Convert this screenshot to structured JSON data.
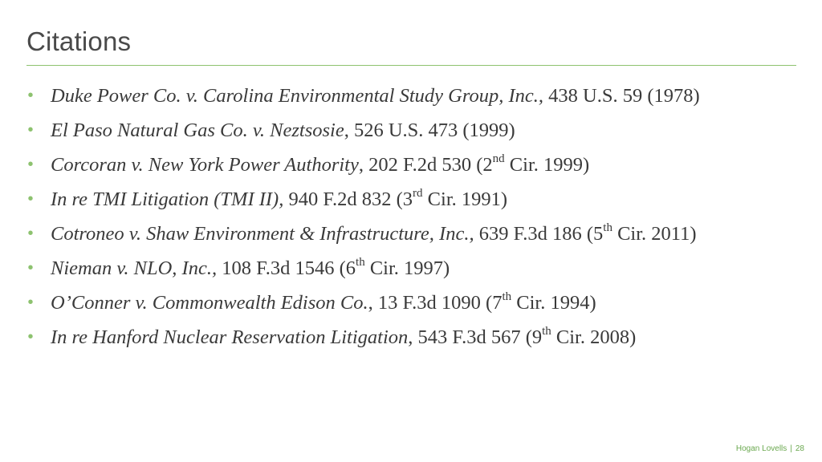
{
  "slide": {
    "title": "Citations",
    "bullet_glyph": "•",
    "accent_color": "#8dc26f",
    "citations": [
      {
        "case_name": "Duke Power Co. v. Carolina Environmental Study Group, Inc.,",
        "citation": " 438 U.S. 59 (1978)",
        "ordinal": "",
        "tail": ""
      },
      {
        "case_name": "El Paso Natural Gas Co. v. Neztsosie",
        "citation": ", 526 U.S. 473 (1999)",
        "ordinal": "",
        "tail": ""
      },
      {
        "case_name": "Corcoran v. New York Power Authority",
        "citation": ", 202 F.2d 530 (2",
        "ordinal": "nd",
        "tail": " Cir. 1999)"
      },
      {
        "case_name": "In re TMI Litigation (TMI II),",
        "citation": " 940 F.2d 832 (3",
        "ordinal": "rd",
        "tail": " Cir. 1991)"
      },
      {
        "case_name": "Cotroneo v. Shaw Environment & Infrastructure, Inc.,",
        "citation": " 639 F.3d 186 (5",
        "ordinal": "th",
        "tail": " Cir. 2011)"
      },
      {
        "case_name": "Nieman v. NLO, Inc.,",
        "citation": " 108 F.3d 1546 (6",
        "ordinal": "th",
        "tail": " Cir. 1997)"
      },
      {
        "case_name": "O’Conner v. Commonwealth Edison Co.",
        "citation": ", 13 F.3d 1090 (7",
        "ordinal": "th",
        "tail": " Cir. 1994)"
      },
      {
        "case_name": "In re Hanford Nuclear Reservation Litigation",
        "citation": ", 543 F.3d 567 (9",
        "ordinal": "th",
        "tail": " Cir. 2008)"
      }
    ]
  },
  "footer": {
    "brand": "Hogan Lovells",
    "separator": "|",
    "page_number": "28"
  }
}
